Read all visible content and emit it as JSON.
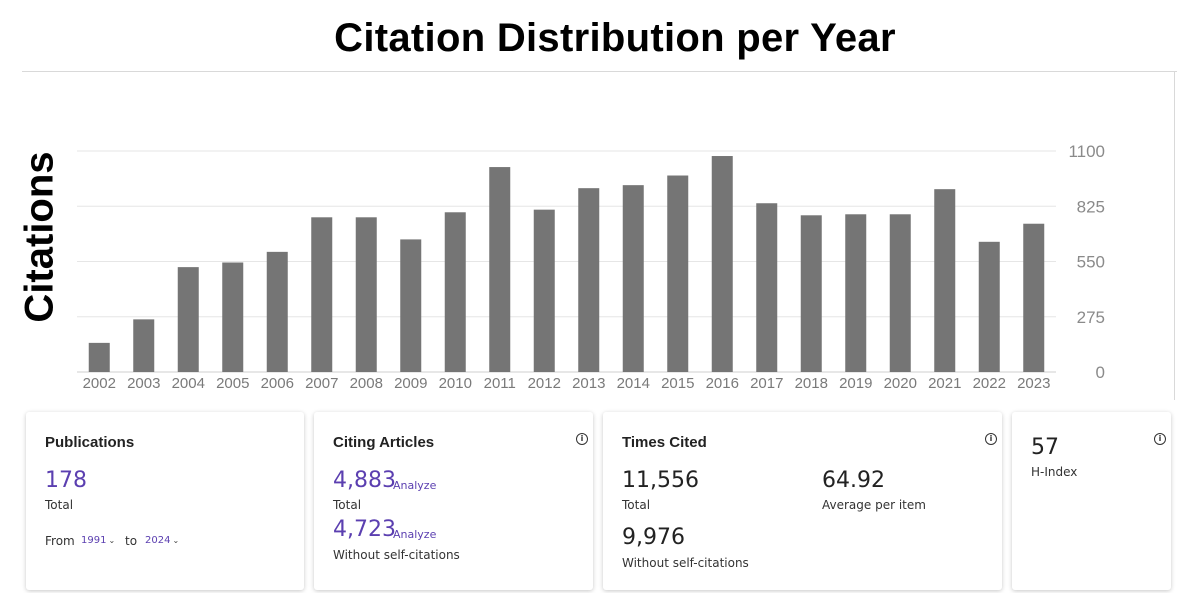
{
  "chart_data": {
    "type": "bar",
    "title": "Citation Distribution per Year",
    "ylabel": "Citations",
    "categories": [
      "2002",
      "2003",
      "2004",
      "2005",
      "2006",
      "2007",
      "2008",
      "2009",
      "2010",
      "2011",
      "2012",
      "2013",
      "2014",
      "2015",
      "2016",
      "2017",
      "2018",
      "2019",
      "2020",
      "2021",
      "2022",
      "2023"
    ],
    "values": [
      145,
      262,
      522,
      545,
      598,
      770,
      770,
      660,
      795,
      1020,
      808,
      915,
      930,
      978,
      1075,
      840,
      780,
      785,
      785,
      910,
      648,
      738
    ],
    "ylim": [
      0,
      1100
    ],
    "yticks": [
      "0",
      "275",
      "550",
      "825",
      "1100"
    ],
    "bar_color": "#757575",
    "y_axis_side": "right",
    "grid": true
  },
  "cards": {
    "publications": {
      "title": "Publications",
      "value": "178",
      "value_label": "Total",
      "from_label": "From",
      "from_value": "1991",
      "to_label": "to",
      "to_value": "2024"
    },
    "citing_articles": {
      "title": "Citing Articles",
      "total_value": "4,883",
      "total_link": "Analyze",
      "total_label": "Total",
      "self_value": "4,723",
      "self_link": "Analyze",
      "self_label": "Without self-citations"
    },
    "times_cited": {
      "title": "Times Cited",
      "total_value": "11,556",
      "total_label": "Total",
      "average_value": "64.92",
      "average_label": "Average per item",
      "self_value": "9,976",
      "self_label": "Without self-citations"
    },
    "h_index": {
      "value": "57",
      "label": "H-Index"
    }
  },
  "accent_color": "#5b3fb0",
  "icons": {
    "info": "info-icon",
    "dropdown": "chevron-down-icon"
  }
}
